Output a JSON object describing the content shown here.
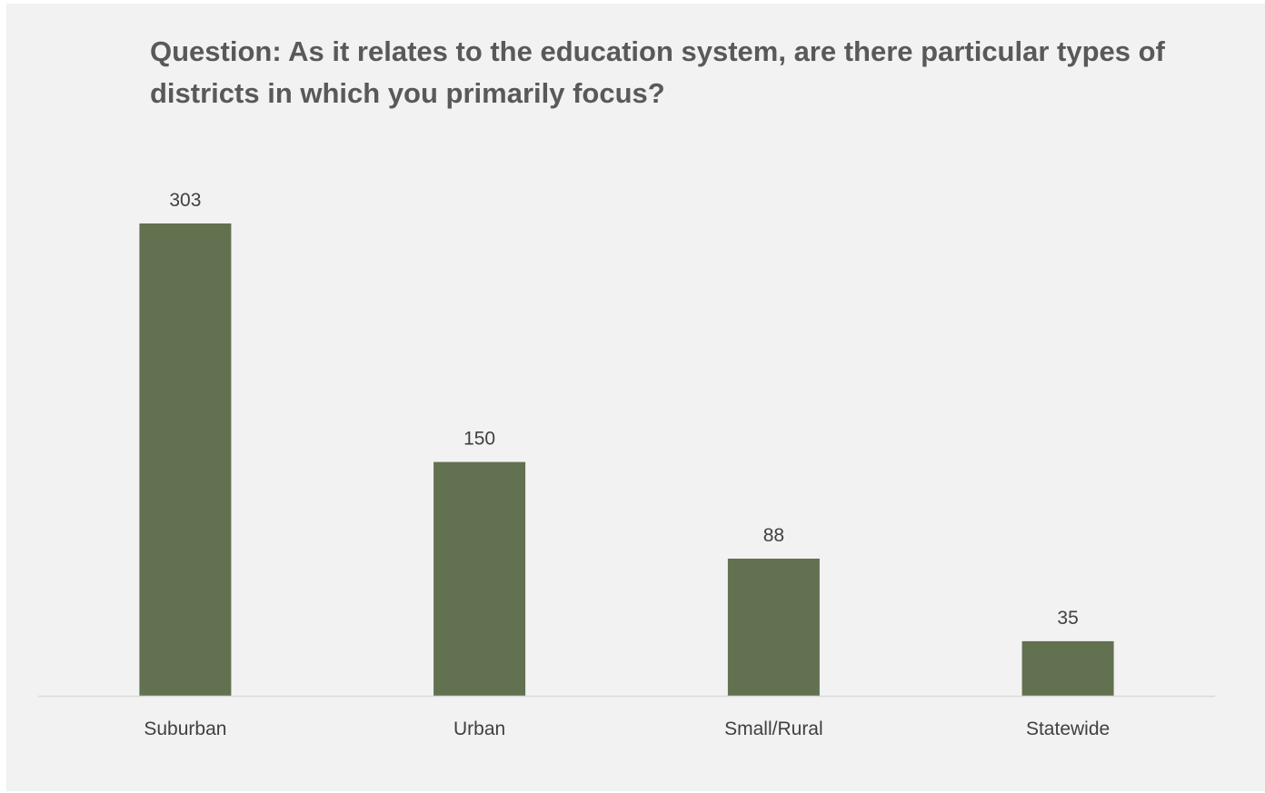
{
  "chart_data": {
    "type": "bar",
    "title": "Question: As it relates to the education system, are there particular types of districts in which you primarily focus?",
    "xlabel": "",
    "ylabel": "",
    "categories": [
      "Suburban",
      "Urban",
      "Small/Rural",
      "Statewide"
    ],
    "values": [
      303,
      150,
      88,
      35
    ],
    "data_labels": [
      "303",
      "150",
      "88",
      "35"
    ],
    "ylim": [
      0,
      303
    ],
    "grid": false,
    "legend": "none",
    "bar_color": "#627150",
    "axis_color": "#d9d9d9",
    "background_color": "#f2f2f2"
  }
}
